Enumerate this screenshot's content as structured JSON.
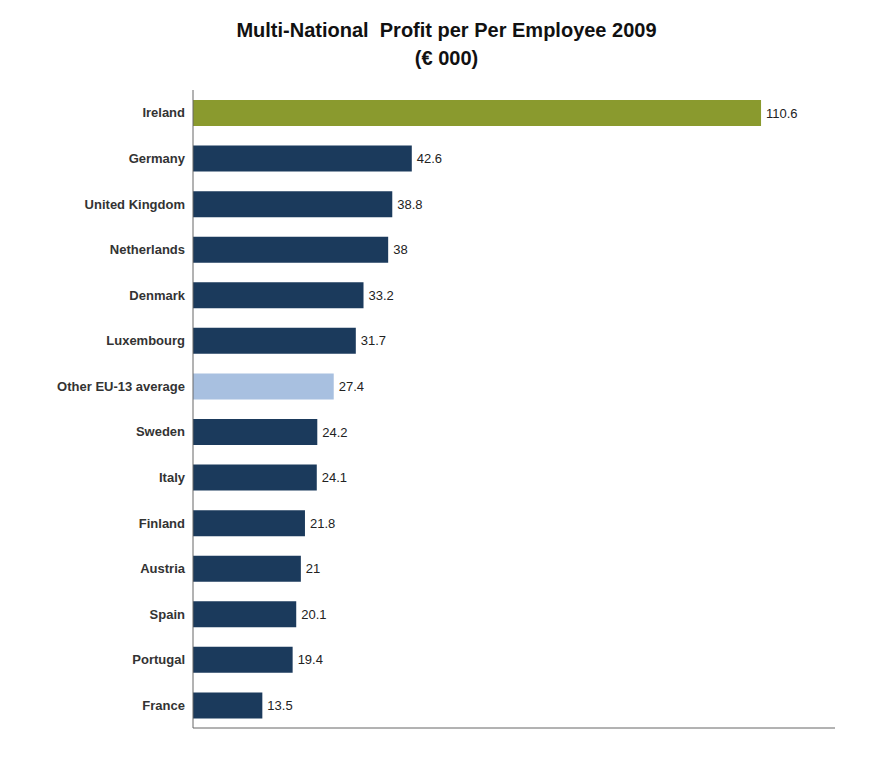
{
  "chart_data": {
    "type": "bar",
    "title": "Multi-National  Profit per Per Employee 2009\n(€ 000)",
    "orientation": "horizontal",
    "categories": [
      "France",
      "Portugal",
      "Spain",
      "Austria",
      "Finland",
      "Italy",
      "Sweden",
      "Other EU-13 average",
      "Luxembourg",
      "Denmark",
      "Netherlands",
      "United Kingdom",
      "Germany",
      "Ireland"
    ],
    "values": [
      13.5,
      19.4,
      20.1,
      21,
      21.8,
      24.1,
      24.2,
      27.4,
      31.7,
      33.2,
      38,
      38.8,
      42.6,
      110.6
    ],
    "colors": [
      "#1b3a5c",
      "#1b3a5c",
      "#1b3a5c",
      "#1b3a5c",
      "#1b3a5c",
      "#1b3a5c",
      "#1b3a5c",
      "#a8c0e0",
      "#1b3a5c",
      "#1b3a5c",
      "#1b3a5c",
      "#1b3a5c",
      "#1b3a5c",
      "#8a9a2e"
    ],
    "xlim": [
      0,
      125
    ],
    "data_labels": true,
    "tick_labels": "y",
    "grid": false
  }
}
